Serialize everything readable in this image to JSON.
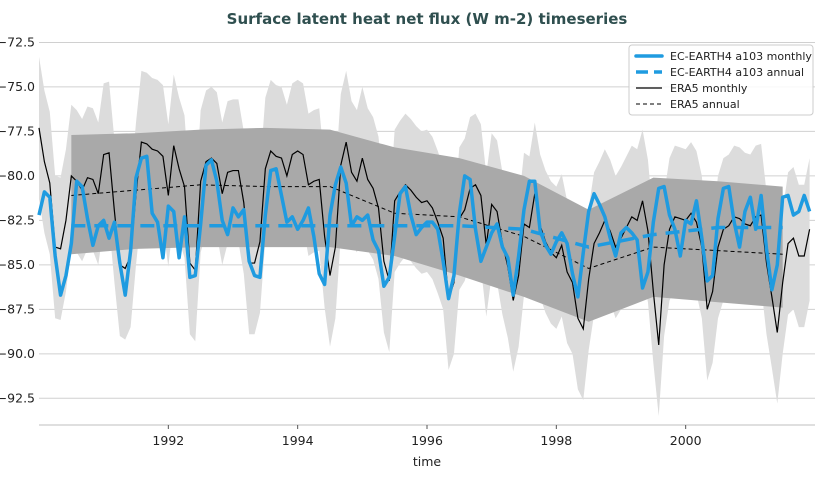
{
  "chart_data": {
    "type": "line",
    "title": "Surface latent heat net flux (W m-2) timeseries",
    "xlabel": "time",
    "ylabel": "",
    "xlim": [
      1990.0,
      2002.0
    ],
    "ylim": [
      -94.0,
      -71.8
    ],
    "grid": true,
    "legend_position": "top-right",
    "x_ticks": [
      "1992",
      "1994",
      "1996",
      "1998",
      "2000"
    ],
    "x_tick_values": [
      1992,
      1994,
      1996,
      1998,
      2000
    ],
    "y_ticks": [
      "−72.5",
      "−75.0",
      "−77.5",
      "−80.0",
      "−82.5",
      "−85.0",
      "−87.5",
      "−90.0",
      "−92.5"
    ],
    "y_tick_values": [
      -72.5,
      -75.0,
      -77.5,
      -80.0,
      -82.5,
      -85.0,
      -87.5,
      -90.0,
      -92.5
    ],
    "monthly_start": "1990-01",
    "annual_x": [
      1990.5,
      1991.5,
      1992.5,
      1993.5,
      1994.5,
      1995.5,
      1996.5,
      1997.5,
      1998.5,
      1999.5,
      2000.5,
      2001.5
    ],
    "colors": {
      "model": "#1f9be0",
      "era5": "#000000",
      "band_monthly": "#dcdcdc",
      "band_annual": "#a9a9a9",
      "title": "#2f4f4f"
    },
    "series": [
      {
        "name": "EC-EARTH4 a103 monthly",
        "style": "solid-thick",
        "values": [
          -82.2,
          -80.9,
          -81.2,
          -84.5,
          -86.7,
          -85.6,
          -83.8,
          -80.3,
          -80.6,
          -82.4,
          -83.9,
          -82.8,
          -82.5,
          -83.5,
          -82.6,
          -84.9,
          -86.7,
          -84.2,
          -80.1,
          -79.0,
          -78.9,
          -82.1,
          -82.6,
          -84.6,
          -81.7,
          -82.0,
          -84.6,
          -82.3,
          -85.7,
          -85.6,
          -82.7,
          -79.4,
          -79.1,
          -80.3,
          -82.5,
          -83.3,
          -81.8,
          -82.3,
          -81.9,
          -84.8,
          -85.6,
          -85.7,
          -82.2,
          -79.7,
          -79.6,
          -81.1,
          -82.6,
          -82.3,
          -83.0,
          -82.5,
          -81.8,
          -83.4,
          -85.5,
          -86.1,
          -82.2,
          -80.5,
          -79.5,
          -80.4,
          -82.8,
          -82.3,
          -82.5,
          -82.2,
          -83.6,
          -84.2,
          -86.2,
          -85.7,
          -83.4,
          -81.0,
          -80.6,
          -82.2,
          -83.3,
          -82.9,
          -82.6,
          -82.6,
          -83.0,
          -84.8,
          -86.9,
          -85.6,
          -82.1,
          -80.0,
          -80.2,
          -83.0,
          -84.8,
          -84.0,
          -83.2,
          -82.7,
          -84.0,
          -84.6,
          -86.7,
          -84.5,
          -81.9,
          -80.3,
          -80.3,
          -83.1,
          -83.9,
          -84.4,
          -83.7,
          -83.2,
          -83.8,
          -85.5,
          -86.8,
          -84.3,
          -82.0,
          -81.0,
          -81.6,
          -82.3,
          -83.5,
          -84.5,
          -83.2,
          -82.9,
          -83.2,
          -83.6,
          -86.3,
          -85.4,
          -82.6,
          -80.7,
          -80.6,
          -82.2,
          -83.0,
          -84.5,
          -82.5,
          -82.7,
          -81.4,
          -83.5,
          -85.9,
          -85.6,
          -82.4,
          -80.7,
          -80.6,
          -82.6,
          -84.0,
          -82.0,
          -81.2,
          -83.0,
          -81.1,
          -84.1,
          -86.4,
          -85.0,
          -81.2,
          -81.1,
          -82.2,
          -82.0,
          -81.1,
          -82.0
        ]
      },
      {
        "name": "EC-EARTH4 a103 annual",
        "style": "dashed-thick",
        "values": [
          -82.8,
          -82.8,
          -82.8,
          -82.8,
          -82.8,
          -82.8,
          -82.8,
          -83.0,
          -84.0,
          -83.3,
          -82.9,
          -82.9
        ]
      },
      {
        "name": "ERA5 monthly",
        "style": "solid-thin",
        "values": [
          -77.3,
          -79.2,
          -80.4,
          -84.0,
          -84.1,
          -82.5,
          -80.0,
          -80.3,
          -80.8,
          -80.1,
          -80.2,
          -81.0,
          -78.8,
          -78.7,
          -82.0,
          -85.0,
          -85.2,
          -84.5,
          -81.0,
          -78.1,
          -78.2,
          -78.5,
          -78.6,
          -78.9,
          -81.1,
          -78.3,
          -79.6,
          -80.6,
          -84.9,
          -85.3,
          -80.3,
          -79.2,
          -79.0,
          -79.3,
          -81.0,
          -79.8,
          -79.7,
          -79.7,
          -81.5,
          -84.9,
          -84.9,
          -83.7,
          -79.6,
          -78.6,
          -78.9,
          -79.0,
          -80.0,
          -78.8,
          -78.6,
          -78.8,
          -80.5,
          -80.3,
          -80.2,
          -83.4,
          -85.6,
          -84.0,
          -79.4,
          -78.1,
          -79.8,
          -80.3,
          -79.0,
          -80.2,
          -80.7,
          -81.8,
          -84.8,
          -85.9,
          -81.4,
          -80.9,
          -80.5,
          -80.8,
          -81.2,
          -81.5,
          -81.4,
          -81.8,
          -82.6,
          -83.5,
          -86.9,
          -86.0,
          -82.4,
          -81.9,
          -80.7,
          -80.5,
          -81.1,
          -83.9,
          -81.6,
          -82.0,
          -83.8,
          -85.1,
          -87.0,
          -85.6,
          -82.7,
          -82.9,
          -81.0,
          -82.8,
          -83.7,
          -84.3,
          -84.6,
          -83.9,
          -85.4,
          -86.0,
          -88.0,
          -88.6,
          -85.8,
          -83.8,
          -83.2,
          -82.5,
          -83.1,
          -84.0,
          -83.5,
          -82.9,
          -82.3,
          -82.5,
          -81.4,
          -83.1,
          -86.5,
          -89.5,
          -85.0,
          -83.0,
          -82.3,
          -82.4,
          -82.5,
          -82.1,
          -82.6,
          -84.0,
          -87.5,
          -86.5,
          -84.0,
          -83.0,
          -82.8,
          -82.3,
          -82.4,
          -82.7,
          -82.8,
          -82.3,
          -82.2,
          -84.9,
          -86.8,
          -88.8,
          -86.0,
          -83.8,
          -83.5,
          -84.5,
          -84.5,
          -83.0
        ]
      },
      {
        "name": "ERA5 annual",
        "style": "dashed-thin",
        "values": [
          -81.1,
          -80.8,
          -80.5,
          -80.6,
          -80.6,
          -82.1,
          -82.3,
          -83.4,
          -85.2,
          -84.0,
          -84.2,
          -84.4
        ]
      }
    ],
    "bands": {
      "monthly_upper": [
        -73.3,
        -75.2,
        -76.4,
        -80.0,
        -80.1,
        -78.5,
        -76.0,
        -76.3,
        -76.8,
        -76.1,
        -76.2,
        -77.0,
        -74.8,
        -74.7,
        -78.0,
        -81.0,
        -81.2,
        -80.5,
        -77.0,
        -74.1,
        -74.2,
        -74.5,
        -74.6,
        -74.9,
        -77.1,
        -74.3,
        -75.6,
        -76.6,
        -80.9,
        -81.3,
        -76.3,
        -75.2,
        -75.0,
        -75.3,
        -77.0,
        -75.8,
        -75.7,
        -75.7,
        -77.5,
        -80.9,
        -80.9,
        -79.7,
        -75.6,
        -74.6,
        -74.9,
        -75.0,
        -76.0,
        -74.8,
        -74.6,
        -74.8,
        -76.5,
        -76.3,
        -76.2,
        -79.4,
        -81.6,
        -80.0,
        -75.4,
        -74.1,
        -75.8,
        -76.3,
        -75.0,
        -76.2,
        -76.7,
        -77.8,
        -80.8,
        -81.9,
        -77.4,
        -76.9,
        -76.5,
        -76.8,
        -77.2,
        -77.5,
        -77.4,
        -77.8,
        -78.6,
        -79.5,
        -82.9,
        -82.0,
        -78.4,
        -77.9,
        -76.7,
        -76.5,
        -77.1,
        -79.9,
        -77.6,
        -78.0,
        -79.8,
        -81.1,
        -83.0,
        -81.6,
        -78.7,
        -78.9,
        -77.0,
        -78.8,
        -79.7,
        -80.3,
        -80.6,
        -79.9,
        -81.4,
        -82.0,
        -84.0,
        -84.6,
        -81.8,
        -79.8,
        -79.2,
        -78.5,
        -79.1,
        -80.0,
        -79.5,
        -78.9,
        -78.3,
        -78.5,
        -77.4,
        -79.1,
        -82.5,
        -85.5,
        -81.0,
        -79.0,
        -78.3,
        -78.4,
        -78.5,
        -78.1,
        -78.6,
        -80.0,
        -83.5,
        -82.5,
        -80.0,
        -79.0,
        -78.8,
        -78.3,
        -78.4,
        -78.7,
        -78.8,
        -78.3,
        -78.2,
        -80.9,
        -82.8,
        -84.8,
        -82.0,
        -79.8,
        -79.5,
        -80.5,
        -80.5,
        -79.0
      ],
      "monthly_lower": [
        -81.3,
        -83.2,
        -84.4,
        -88.0,
        -88.1,
        -86.5,
        -84.0,
        -84.3,
        -84.8,
        -84.1,
        -84.2,
        -85.0,
        -82.8,
        -82.7,
        -86.0,
        -89.0,
        -89.2,
        -88.5,
        -85.0,
        -82.1,
        -82.2,
        -82.5,
        -82.6,
        -82.9,
        -85.1,
        -82.3,
        -83.6,
        -84.6,
        -88.9,
        -89.3,
        -84.3,
        -83.2,
        -83.0,
        -83.3,
        -85.0,
        -83.8,
        -83.7,
        -83.7,
        -85.5,
        -88.9,
        -88.9,
        -87.7,
        -83.6,
        -82.6,
        -82.9,
        -83.0,
        -84.0,
        -82.8,
        -82.6,
        -82.8,
        -84.5,
        -84.3,
        -84.2,
        -87.4,
        -89.6,
        -88.0,
        -83.4,
        -82.1,
        -83.8,
        -84.3,
        -83.0,
        -84.2,
        -84.7,
        -85.8,
        -88.8,
        -89.9,
        -85.4,
        -84.9,
        -84.5,
        -84.8,
        -85.2,
        -85.5,
        -85.4,
        -85.8,
        -86.6,
        -87.5,
        -90.9,
        -90.0,
        -86.4,
        -85.9,
        -84.7,
        -84.5,
        -85.1,
        -87.9,
        -85.6,
        -86.0,
        -87.8,
        -89.1,
        -91.0,
        -89.6,
        -86.7,
        -86.9,
        -85.0,
        -86.8,
        -87.7,
        -88.3,
        -88.6,
        -87.9,
        -89.4,
        -90.0,
        -92.0,
        -92.6,
        -89.8,
        -87.8,
        -87.2,
        -86.5,
        -87.1,
        -88.0,
        -87.5,
        -86.9,
        -86.3,
        -86.5,
        -85.4,
        -87.1,
        -90.5,
        -93.5,
        -89.0,
        -87.0,
        -86.3,
        -86.4,
        -86.5,
        -86.1,
        -86.6,
        -88.0,
        -91.5,
        -90.5,
        -88.0,
        -87.0,
        -86.8,
        -86.3,
        -86.4,
        -86.7,
        -86.8,
        -86.3,
        -86.2,
        -88.9,
        -90.8,
        -92.8,
        -90.0,
        -87.8,
        -87.5,
        -88.5,
        -88.5,
        -87.0
      ],
      "annual_upper": [
        -77.7,
        -77.6,
        -77.4,
        -77.3,
        -77.4,
        -78.4,
        -79.0,
        -80.0,
        -81.9,
        -80.1,
        -80.3,
        -80.6
      ],
      "annual_lower": [
        -84.4,
        -84.1,
        -84.0,
        -84.0,
        -84.0,
        -84.5,
        -85.6,
        -86.8,
        -88.2,
        -86.8,
        -87.1,
        -87.4
      ]
    }
  }
}
